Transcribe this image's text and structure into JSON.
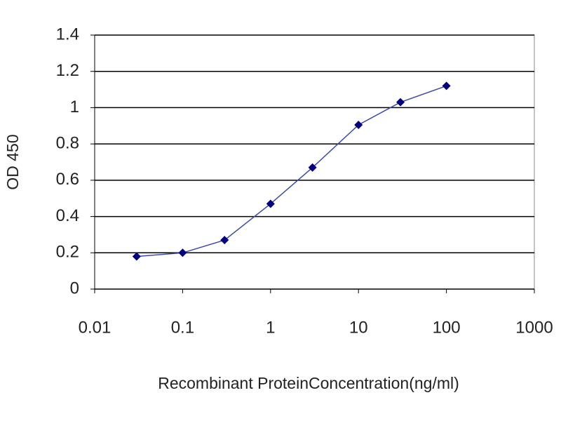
{
  "chart_data": {
    "type": "line",
    "x_label": "Recombinant ProteinConcentration(ng/ml)",
    "y_label": "OD 450",
    "x": [
      0.03,
      0.1,
      0.3,
      1,
      3,
      10,
      30,
      100
    ],
    "series": [
      {
        "color": "#000080",
        "values": [
          0.18,
          0.2,
          0.27,
          0.47,
          0.67,
          0.905,
          1.03,
          1.12
        ]
      }
    ],
    "xlim": [
      0.01,
      1000
    ],
    "xticks": [
      0.01,
      0.1,
      1,
      10,
      100,
      1000
    ],
    "x_log": true,
    "ylim": [
      0,
      1.4
    ],
    "yticks": [
      0,
      0.2,
      0.4,
      0.6,
      0.8,
      1,
      1.2,
      1.4
    ],
    "grid": true
  }
}
